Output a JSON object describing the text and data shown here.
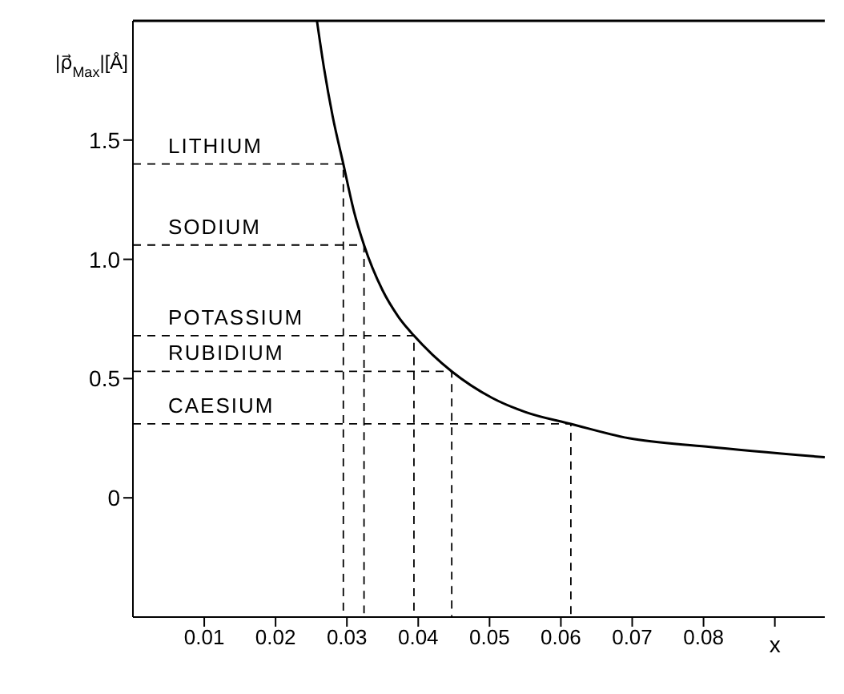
{
  "chart_data": {
    "type": "line",
    "xlabel": "x",
    "ylabel": "|ρ⃗$_{Max}$|[Å]",
    "x": [
      0.0258,
      0.0268,
      0.028,
      0.0295,
      0.031,
      0.0324,
      0.035,
      0.0372,
      0.0394,
      0.042,
      0.0447,
      0.0503,
      0.055,
      0.0614,
      0.0695,
      0.0804,
      0.097
    ],
    "series": [
      {
        "color": "#000000",
        "values": [
          2.0,
          1.8,
          1.6,
          1.4,
          1.2,
          1.06,
          0.87,
          0.76,
          0.68,
          0.6,
          0.53,
          0.42,
          0.36,
          0.31,
          0.25,
          0.215,
          0.17
        ]
      },
      {
        "name": "LITHIUM",
        "color": "#000000",
        "line_style": "dashed",
        "x": [
          0,
          0.0295,
          0.0295
        ],
        "values": [
          1.4,
          1.4,
          -0.5
        ]
      },
      {
        "name": "SODIUM",
        "color": "#000000",
        "line_style": "dashed",
        "x": [
          0,
          0.0324,
          0.0324
        ],
        "values": [
          1.06,
          1.06,
          -0.5
        ]
      },
      {
        "name": "POTASSIUM",
        "color": "#000000",
        "line_style": "dashed",
        "x": [
          0,
          0.0394,
          0.0394
        ],
        "values": [
          0.68,
          0.68,
          -0.5
        ]
      },
      {
        "name": "RUBIDIUM",
        "color": "#000000",
        "line_style": "dashed",
        "x": [
          0,
          0.0447,
          0.0447
        ],
        "values": [
          0.53,
          0.53,
          -0.5
        ]
      },
      {
        "name": "CAESIUM",
        "color": "#000000",
        "line_style": "dashed",
        "x": [
          0,
          0.0614,
          0.0614
        ],
        "values": [
          0.31,
          0.31,
          -0.5
        ]
      }
    ],
    "xlim": [
      0,
      0.097
    ],
    "ylim": [
      -0.5,
      2.0
    ],
    "xticks": [
      0.01,
      0.02,
      0.03,
      0.04,
      0.05,
      0.06,
      0.07,
      0.08,
      {
        "value": 0.09,
        "label": null
      }
    ],
    "yticks": [
      0,
      {
        "value": 0.5,
        "label": "0.5"
      },
      {
        "value": 1,
        "label": "1.0"
      },
      1.5
    ],
    "legend": false,
    "marker": "none",
    "line_style": "solid"
  }
}
